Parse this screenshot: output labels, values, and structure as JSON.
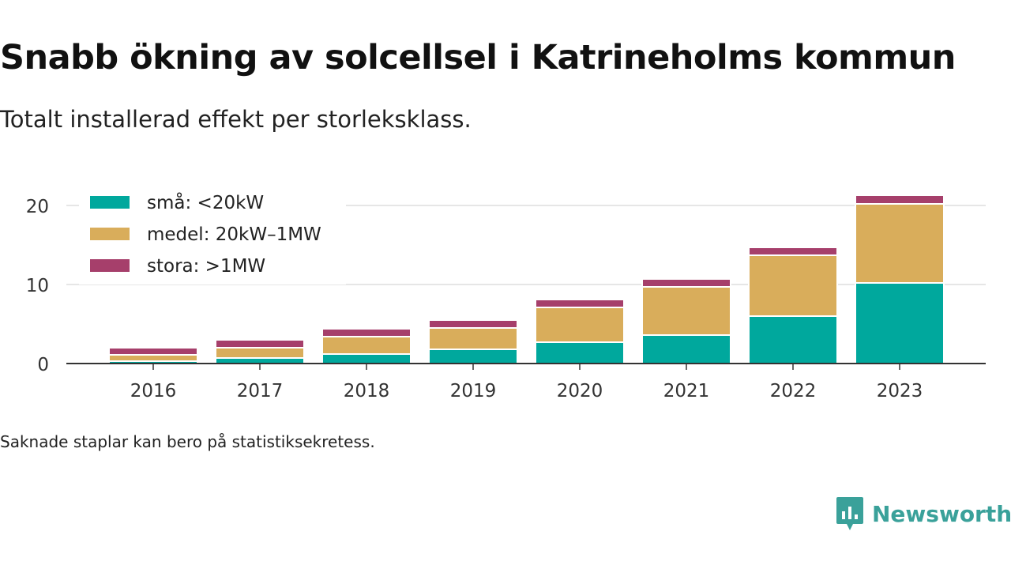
{
  "title": "Snabb ökning av solcellsel i Katrineholms kommun",
  "subtitle": "Totalt installerad effekt per storleksklass.",
  "footnote": "Saknade staplar kan bero på statistiksekretess.",
  "brand": {
    "name": "Newsworthy",
    "logo_icon": "newsworthy-logo-icon",
    "color": "#3aa19a"
  },
  "chart_data": {
    "type": "bar",
    "stacked": true,
    "categories": [
      "2016",
      "2017",
      "2018",
      "2019",
      "2020",
      "2021",
      "2022",
      "2023"
    ],
    "series": [
      {
        "name": "små: <20kW",
        "color": "#00a89d",
        "values": [
          0.3,
          0.7,
          1.2,
          1.8,
          2.7,
          3.6,
          6.0,
          10.2
        ]
      },
      {
        "name": "medel: 20kW–1MW",
        "color": "#d9ad5b",
        "values": [
          0.8,
          1.3,
          2.2,
          2.7,
          4.4,
          6.1,
          7.7,
          10.0
        ]
      },
      {
        "name": "stora: >1MW",
        "color": "#a63f6b",
        "values": [
          0.9,
          1.0,
          1.0,
          1.0,
          1.0,
          1.0,
          1.0,
          1.1
        ]
      }
    ],
    "yticks": [
      0,
      10,
      20
    ],
    "ylim": [
      0,
      21.5
    ],
    "grid": true,
    "legend_position": "top-left"
  }
}
